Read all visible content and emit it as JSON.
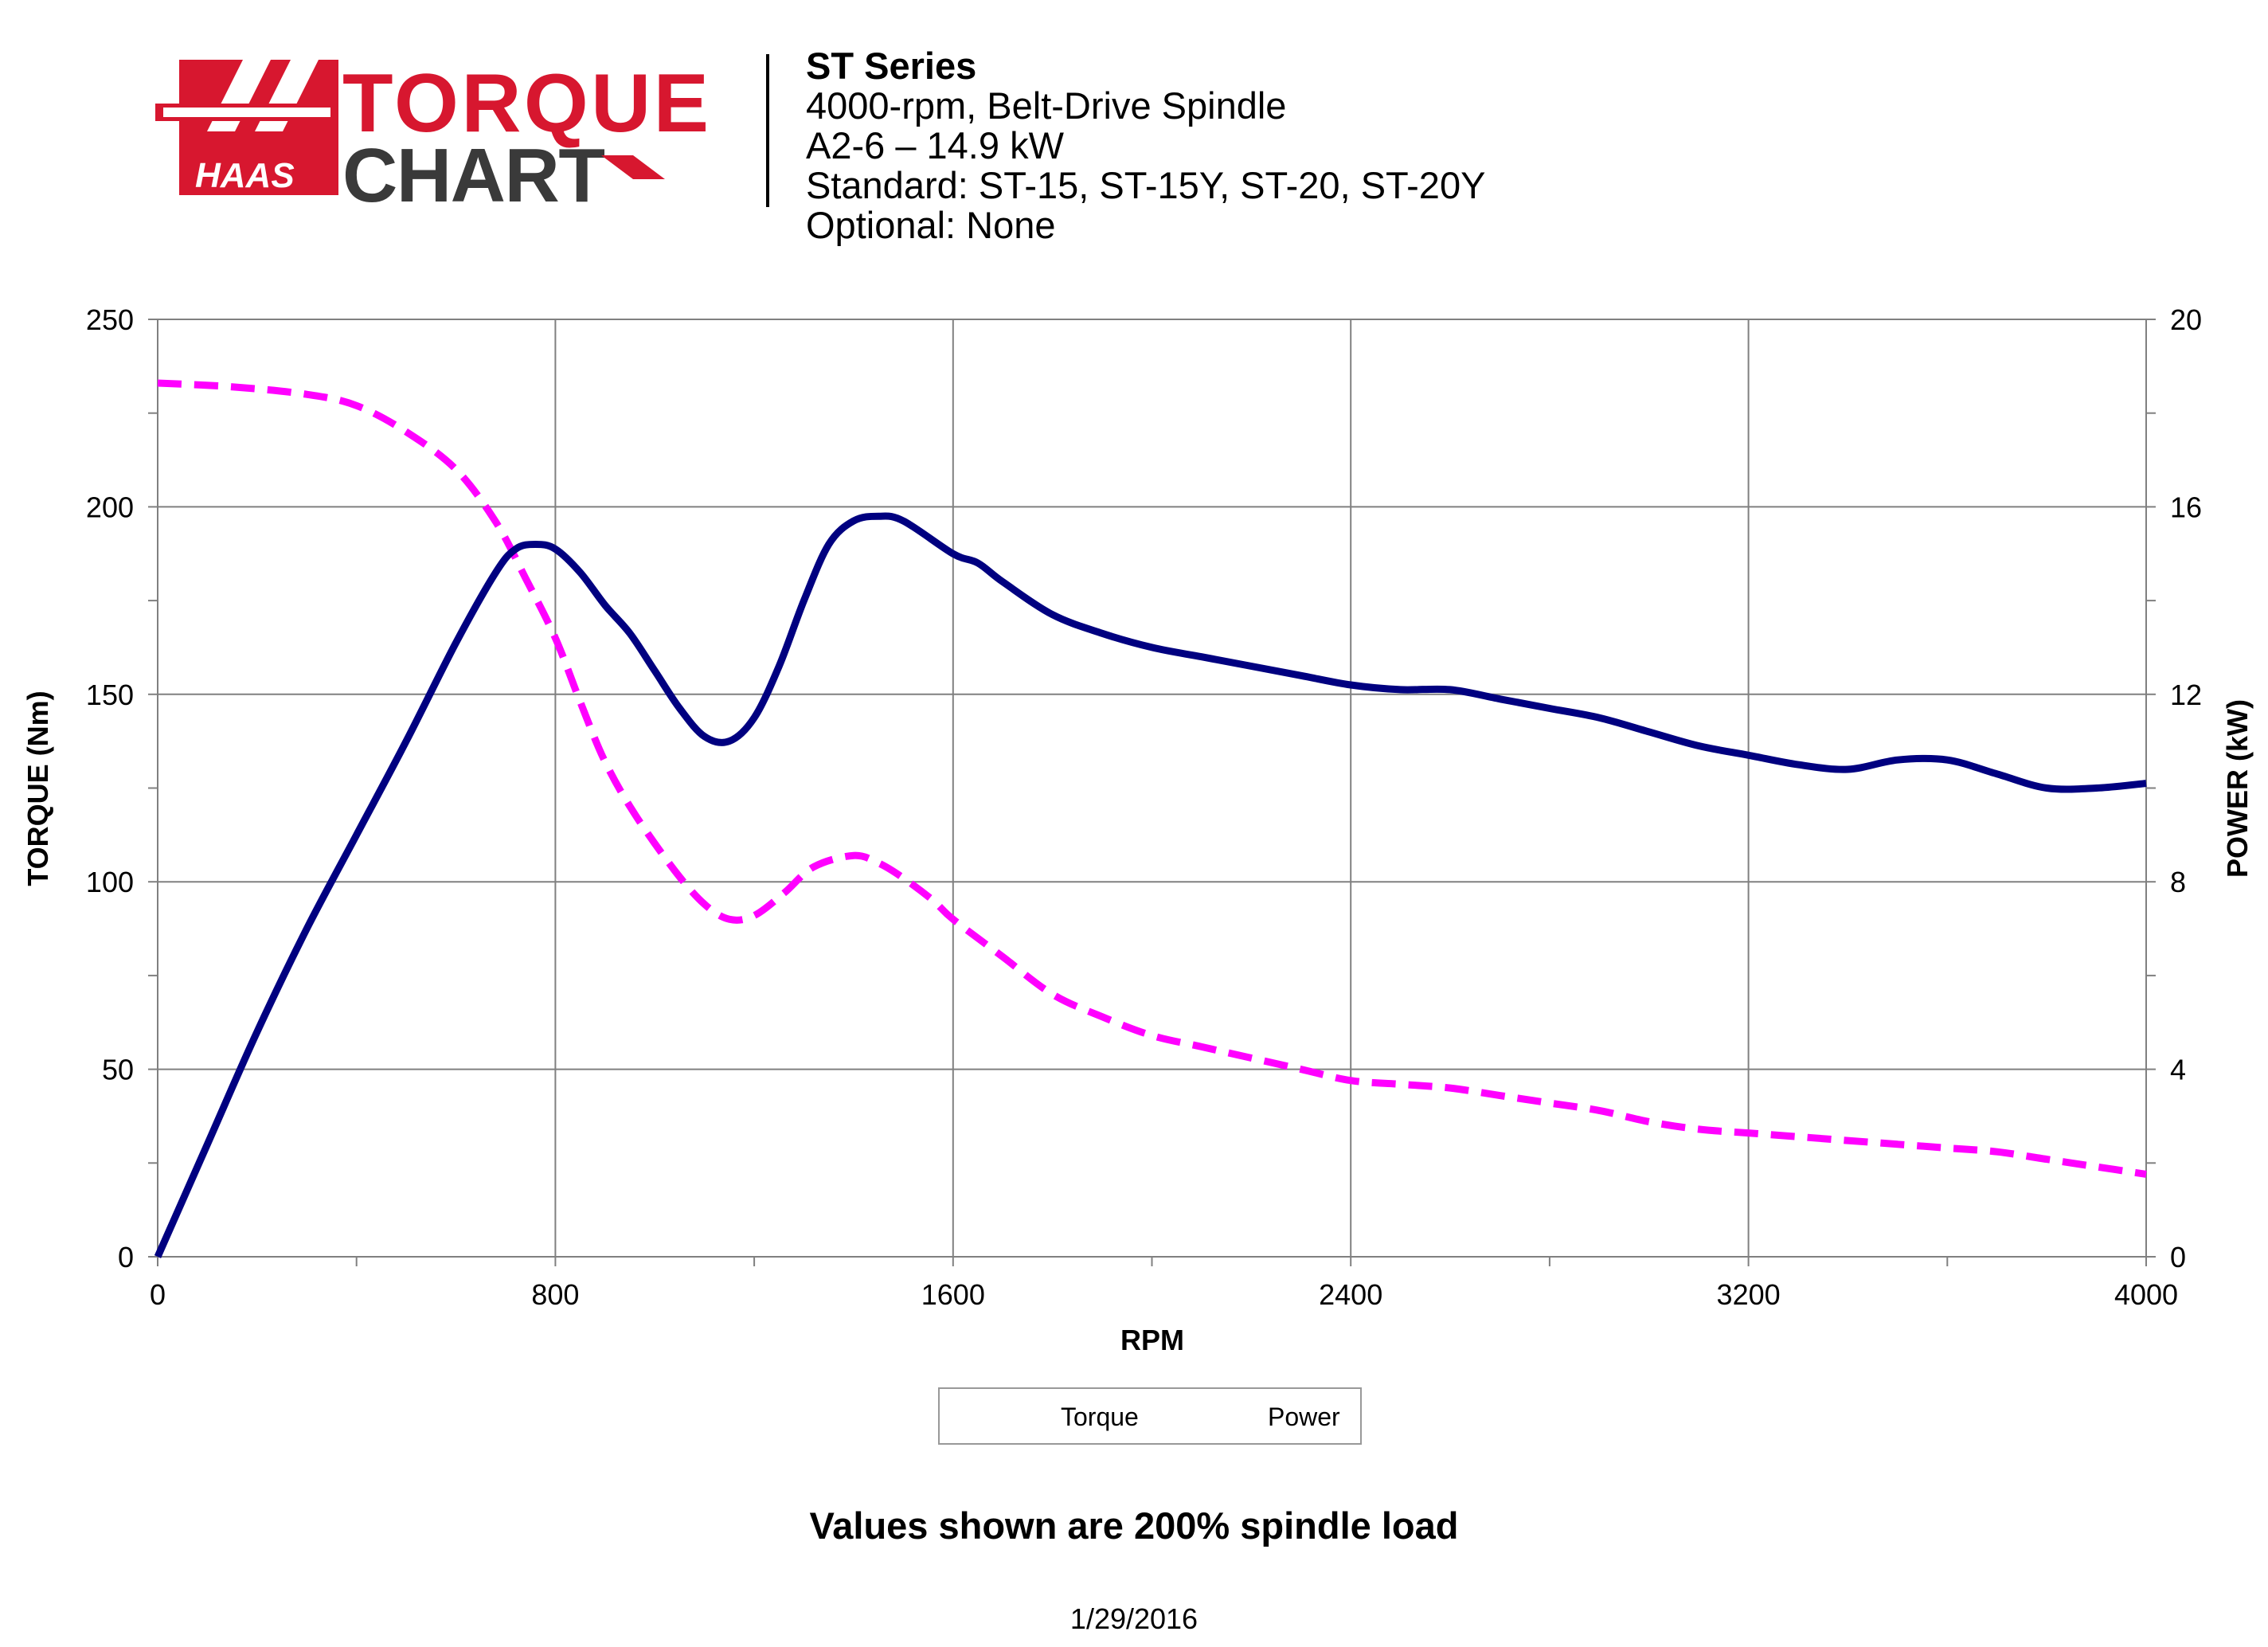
{
  "header": {
    "logo_text": {
      "brand": "HAAS",
      "word1": "TORQUE",
      "word2": "CHART"
    },
    "title": "ST Series",
    "lines": [
      "4000-rpm, Belt-Drive Spindle",
      "A2-6 – 14.9 kW",
      "Standard: ST-15, ST-15Y, ST-20, ST-20Y",
      "Optional: None"
    ]
  },
  "colors": {
    "torque": "#ff00ff",
    "power": "#000080",
    "logo_red": "#d7172f",
    "logo_dark": "#3a3a3a",
    "grid": "#808080"
  },
  "chart_data": {
    "type": "line",
    "xlabel": "RPM",
    "ylabel": "TORQUE (Nm)",
    "y2label": "POWER (kW)",
    "xlim": [
      0,
      4000
    ],
    "ylim": [
      0,
      250
    ],
    "y2lim": [
      0,
      20
    ],
    "x_ticks": [
      0,
      800,
      1600,
      2400,
      3200,
      4000
    ],
    "y_ticks": [
      0,
      50,
      100,
      150,
      200,
      250
    ],
    "y2_ticks": [
      0,
      4,
      8,
      12,
      16,
      20
    ],
    "grid": true,
    "legend": "bottom-center",
    "series": [
      {
        "name": "Torque",
        "axis": "left",
        "style": "dashed",
        "x": [
          0,
          150,
          300,
          400,
          500,
          600,
          680,
          740,
          800,
          850,
          900,
          960,
          1040,
          1100,
          1150,
          1200,
          1260,
          1320,
          1400,
          1450,
          1500,
          1560,
          1600,
          1700,
          1800,
          1900,
          2000,
          2100,
          2200,
          2300,
          2400,
          2500,
          2600,
          2700,
          2800,
          2900,
          3000,
          3100,
          3200,
          3300,
          3400,
          3500,
          3600,
          3700,
          3800,
          3900,
          4000
        ],
        "y": [
          233,
          232,
          230,
          227,
          220,
          210,
          196,
          181,
          165,
          148,
          132,
          118,
          103,
          94,
          90,
          91,
          97,
          104,
          107,
          105,
          101,
          95,
          90,
          80,
          70,
          64,
          59,
          56,
          53,
          50,
          47,
          46,
          45,
          43,
          41,
          39,
          36,
          34,
          33,
          32,
          31,
          30,
          29,
          28,
          26,
          24,
          22
        ]
      },
      {
        "name": "Power",
        "axis": "right",
        "style": "solid",
        "x": [
          0,
          100,
          200,
          300,
          400,
          500,
          600,
          680,
          720,
          760,
          800,
          850,
          900,
          950,
          1000,
          1050,
          1100,
          1150,
          1200,
          1250,
          1300,
          1350,
          1400,
          1450,
          1500,
          1600,
          1650,
          1700,
          1800,
          1900,
          2000,
          2100,
          2200,
          2300,
          2400,
          2500,
          2600,
          2700,
          2800,
          2900,
          3000,
          3100,
          3200,
          3300,
          3400,
          3500,
          3600,
          3700,
          3800,
          3900,
          4000
        ],
        "y": [
          0,
          2.4,
          4.8,
          7.0,
          9.0,
          11.0,
          13.1,
          14.6,
          15.1,
          15.2,
          15.1,
          14.6,
          13.9,
          13.3,
          12.5,
          11.7,
          11.1,
          11.0,
          11.5,
          12.6,
          14.0,
          15.2,
          15.7,
          15.8,
          15.7,
          15.0,
          14.8,
          14.4,
          13.7,
          13.3,
          13.0,
          12.8,
          12.6,
          12.4,
          12.2,
          12.1,
          12.1,
          11.9,
          11.7,
          11.5,
          11.2,
          10.9,
          10.7,
          10.5,
          10.4,
          10.6,
          10.6,
          10.3,
          10.0,
          10.0,
          10.1
        ]
      }
    ]
  },
  "note": "Values shown are 200% spindle load",
  "date": "1/29/2016"
}
